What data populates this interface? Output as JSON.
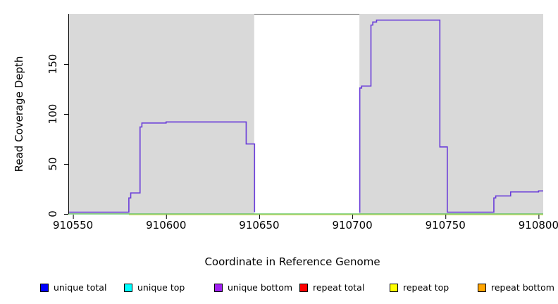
{
  "chart_data": {
    "type": "line",
    "title": "",
    "xlabel": "Coordinate in Reference Genome",
    "ylabel": "Read Coverage Depth",
    "xlim": [
      910547.5,
      910802.5
    ],
    "ylim": [
      0,
      200
    ],
    "x_ticks": [
      910550,
      910600,
      910650,
      910700,
      910750,
      910800
    ],
    "y_ticks": [
      0,
      50,
      100,
      150
    ],
    "grid": false,
    "legend_position": "bottom",
    "plot_bg_color": "#ffffff",
    "shaded_region_color": "#d9d9d9",
    "shaded_regions": [
      {
        "x0": 910547.5,
        "x1": 910647.3
      },
      {
        "x0": 910703.8,
        "x1": 910802.5
      }
    ],
    "gap_top_border": {
      "x0": 910647.3,
      "x1": 910703.8,
      "color": "#999999"
    },
    "axis_color": "#000000",
    "series": [
      {
        "name": "unique bottom coverage (step line)",
        "color": "#6a3dd9",
        "segments": [
          [
            [
              910547.5,
              0
            ],
            [
              910580,
              16
            ],
            [
              910581,
              21
            ],
            [
              910586,
              87
            ],
            [
              910587,
              91
            ],
            [
              910600,
              92
            ],
            [
              910643,
              70
            ],
            [
              910647.5,
              0
            ]
          ],
          [
            [
              910703.7,
              0
            ],
            [
              910704,
              126
            ],
            [
              910705,
              128
            ],
            [
              910710,
              189
            ],
            [
              910711,
              192
            ],
            [
              910713,
              194
            ],
            [
              910747,
              67
            ],
            [
              910751,
              0
            ],
            [
              910776,
              16
            ],
            [
              910777,
              18
            ],
            [
              910785,
              22
            ],
            [
              910800,
              23
            ],
            [
              910802.5,
              23
            ]
          ]
        ]
      },
      {
        "name": "zero baseline (green)",
        "color": "#55c055",
        "segments": [
          [
            [
              910547.5,
              0
            ],
            [
              910802.5,
              0
            ]
          ]
        ]
      },
      {
        "name": "zero baseline (yellow)",
        "color": "#dede66",
        "segments": [
          [
            [
              910580,
              0
            ],
            [
              910802.5,
              0
            ]
          ]
        ]
      }
    ],
    "legend": [
      {
        "label": "unique total",
        "color": "#0000ff"
      },
      {
        "label": "unique top",
        "color": "#00ffff"
      },
      {
        "label": "unique bottom",
        "color": "#a020f0"
      },
      {
        "label": "repeat total",
        "color": "#ff0000"
      },
      {
        "label": "repeat top",
        "color": "#ffff00"
      },
      {
        "label": "repeat bottom",
        "color": "#ffa500"
      }
    ]
  }
}
